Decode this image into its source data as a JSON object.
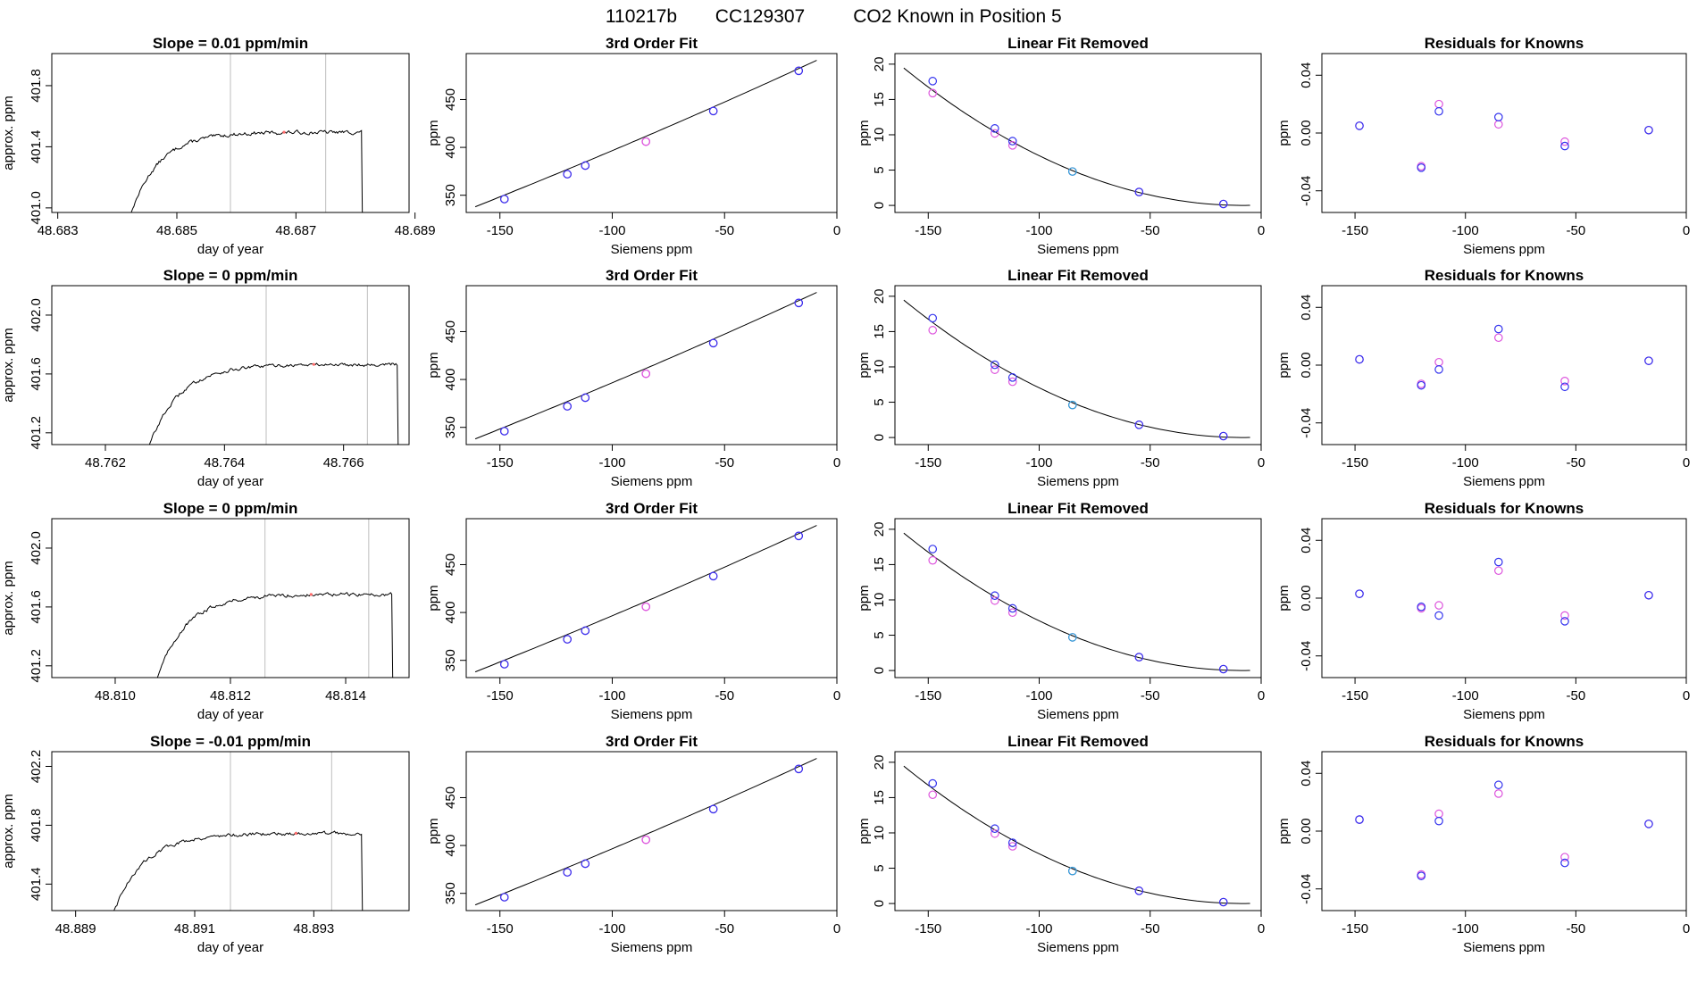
{
  "figure": {
    "title_parts": [
      "110217b",
      "CC129307",
      "CO2 Known in Position  5"
    ]
  },
  "colors": {
    "axis": "#000000",
    "trace": "#000000",
    "guide": "#bebebe",
    "known_a": "#3333ee",
    "known_b": "#dd55dd",
    "known_mid": "#2aa3d6",
    "marker": "#ff6b6b"
  },
  "labels": {
    "slope_prefix": "Slope = ",
    "slope_suffix": " ppm/min",
    "fit_title": "3rd Order Fit",
    "linear_title": "Linear Fit Removed",
    "resid_title": "Residuals for Knowns",
    "day_xlabel": "day of year",
    "day_ylabel": "approx. ppm",
    "siemens_xlabel": "Siemens ppm",
    "ppm_ylabel": "ppm"
  },
  "chart_data": {
    "known_x": [
      -148,
      -120,
      -112,
      -85,
      -55,
      -17
    ],
    "fit": {
      "type": "line",
      "xlim": [
        -165,
        0
      ],
      "ylim": [
        332,
        498
      ],
      "xticks": [
        -150,
        -100,
        -50,
        0
      ],
      "yticks": [
        350,
        400,
        450
      ],
      "curve_y0": 338,
      "curve_slope": 0.93
    },
    "linear_removed": {
      "type": "line",
      "xlim": [
        -165,
        0
      ],
      "ylim": [
        -1,
        21.5
      ],
      "xticks": [
        -150,
        -100,
        -50,
        0
      ],
      "yticks": [
        0,
        5,
        10,
        15,
        20
      ],
      "curve_coef": 0.000831,
      "curve_offset": -8
    },
    "rows": [
      {
        "slope": "0.01",
        "day": {
          "type": "line",
          "xlim": [
            48.6829,
            48.6889
          ],
          "ylim": [
            400.97,
            402.01
          ],
          "xticks": [
            "48.683",
            "48.685",
            "48.687",
            "48.689"
          ],
          "yticks": [
            "401.0",
            "401.4",
            "401.8"
          ],
          "t_start": 48.6841,
          "t_end": 48.6881,
          "plateau": 401.495,
          "base": 400.8,
          "drop": 400.95,
          "guides": [
            48.6859,
            48.6875
          ],
          "marker": [
            48.6868,
            401.495
          ]
        },
        "fit_points_a": [
          346,
          372,
          381,
          406,
          438,
          480
        ],
        "fit_points_b": [
          346,
          372,
          381,
          406,
          438,
          480
        ],
        "linear_points_a": [
          17.6,
          10.9,
          9.1,
          4.8,
          1.9,
          0.2
        ],
        "linear_points_b": [
          15.9,
          10.2,
          8.5,
          4.8,
          1.9,
          0.2
        ],
        "resid": {
          "type": "scatter",
          "xlim": [
            -165,
            0
          ],
          "ylim": [
            -0.055,
            0.055
          ],
          "xticks": [
            -150,
            -100,
            -50,
            0
          ],
          "yticks": [
            -0.04,
            0.0,
            0.04
          ],
          "a": [
            0.005,
            -0.024,
            0.015,
            0.011,
            -0.009,
            0.002
          ],
          "b": [
            0.005,
            -0.023,
            0.02,
            0.006,
            -0.006,
            0.002
          ]
        }
      },
      {
        "slope": "0",
        "day": {
          "type": "line",
          "xlim": [
            48.7611,
            48.7671
          ],
          "ylim": [
            401.12,
            402.2
          ],
          "xticks": [
            "48.762",
            "48.764",
            "48.766"
          ],
          "yticks": [
            "401.2",
            "401.6",
            "402.0"
          ],
          "t_start": 48.7626,
          "t_end": 48.7669,
          "plateau": 401.665,
          "base": 400.95,
          "drop": 401.1,
          "guides": [
            48.7647,
            48.7664
          ],
          "marker": [
            48.7655,
            401.665
          ]
        },
        "fit_points_a": [
          346,
          372,
          381,
          406,
          438,
          480
        ],
        "fit_points_b": [
          346,
          372,
          381,
          406,
          438,
          480
        ],
        "linear_points_a": [
          16.9,
          10.3,
          8.5,
          4.6,
          1.8,
          0.2
        ],
        "linear_points_b": [
          15.2,
          9.6,
          7.9,
          4.6,
          1.8,
          0.2
        ],
        "resid": {
          "type": "scatter",
          "xlim": [
            -165,
            0
          ],
          "ylim": [
            -0.055,
            0.055
          ],
          "xticks": [
            -150,
            -100,
            -50,
            0
          ],
          "yticks": [
            -0.04,
            0.0,
            0.04
          ],
          "a": [
            0.004,
            -0.014,
            -0.003,
            0.025,
            -0.015,
            0.003
          ],
          "b": [
            0.004,
            -0.013,
            0.002,
            0.019,
            -0.011,
            0.003
          ]
        }
      },
      {
        "slope": "0",
        "day": {
          "type": "line",
          "xlim": [
            48.8089,
            48.8151
          ],
          "ylim": [
            401.12,
            402.2
          ],
          "xticks": [
            "48.810",
            "48.812",
            "48.814"
          ],
          "yticks": [
            "401.2",
            "401.6",
            "402.0"
          ],
          "t_start": 48.8106,
          "t_end": 48.8148,
          "plateau": 401.685,
          "base": 400.95,
          "drop": 401.1,
          "guides": [
            48.8126,
            48.8144
          ],
          "marker": [
            48.8134,
            401.685
          ]
        },
        "fit_points_a": [
          346,
          372,
          381,
          406,
          438,
          480
        ],
        "fit_points_b": [
          346,
          372,
          381,
          406,
          438,
          480
        ],
        "linear_points_a": [
          17.2,
          10.6,
          8.8,
          4.7,
          1.9,
          0.2
        ],
        "linear_points_b": [
          15.6,
          9.9,
          8.2,
          4.7,
          1.9,
          0.2
        ],
        "resid": {
          "type": "scatter",
          "xlim": [
            -165,
            0
          ],
          "ylim": [
            -0.055,
            0.055
          ],
          "xticks": [
            -150,
            -100,
            -50,
            0
          ],
          "yticks": [
            -0.04,
            0.0,
            0.04
          ],
          "a": [
            0.003,
            -0.006,
            -0.012,
            0.025,
            -0.016,
            0.002
          ],
          "b": [
            0.003,
            -0.007,
            -0.005,
            0.019,
            -0.012,
            0.002
          ]
        }
      },
      {
        "slope": "-0.01",
        "day": {
          "type": "line",
          "xlim": [
            48.8886,
            48.8946
          ],
          "ylim": [
            401.22,
            402.3
          ],
          "xticks": [
            "48.889",
            "48.891",
            "48.893"
          ],
          "yticks": [
            "401.4",
            "401.8",
            "402.2"
          ],
          "t_start": 48.8895,
          "t_end": 48.8938,
          "plateau": 401.745,
          "base": 401.05,
          "drop": 401.2,
          "guides": [
            48.8916,
            48.8933
          ],
          "marker": [
            48.8927,
            401.745
          ]
        },
        "fit_points_a": [
          346,
          372,
          381,
          406,
          438,
          480
        ],
        "fit_points_b": [
          346,
          372,
          381,
          406,
          438,
          480
        ],
        "linear_points_a": [
          17.0,
          10.6,
          8.6,
          4.6,
          1.8,
          0.2
        ],
        "linear_points_b": [
          15.4,
          9.9,
          8.1,
          4.6,
          1.8,
          0.2
        ],
        "resid": {
          "type": "scatter",
          "xlim": [
            -165,
            0
          ],
          "ylim": [
            -0.055,
            0.055
          ],
          "xticks": [
            -150,
            -100,
            -50,
            0
          ],
          "yticks": [
            -0.04,
            0.0,
            0.04
          ],
          "a": [
            0.008,
            -0.031,
            0.007,
            0.032,
            -0.022,
            0.005
          ],
          "b": [
            0.008,
            -0.03,
            0.012,
            0.026,
            -0.018,
            0.005
          ]
        }
      }
    ]
  }
}
